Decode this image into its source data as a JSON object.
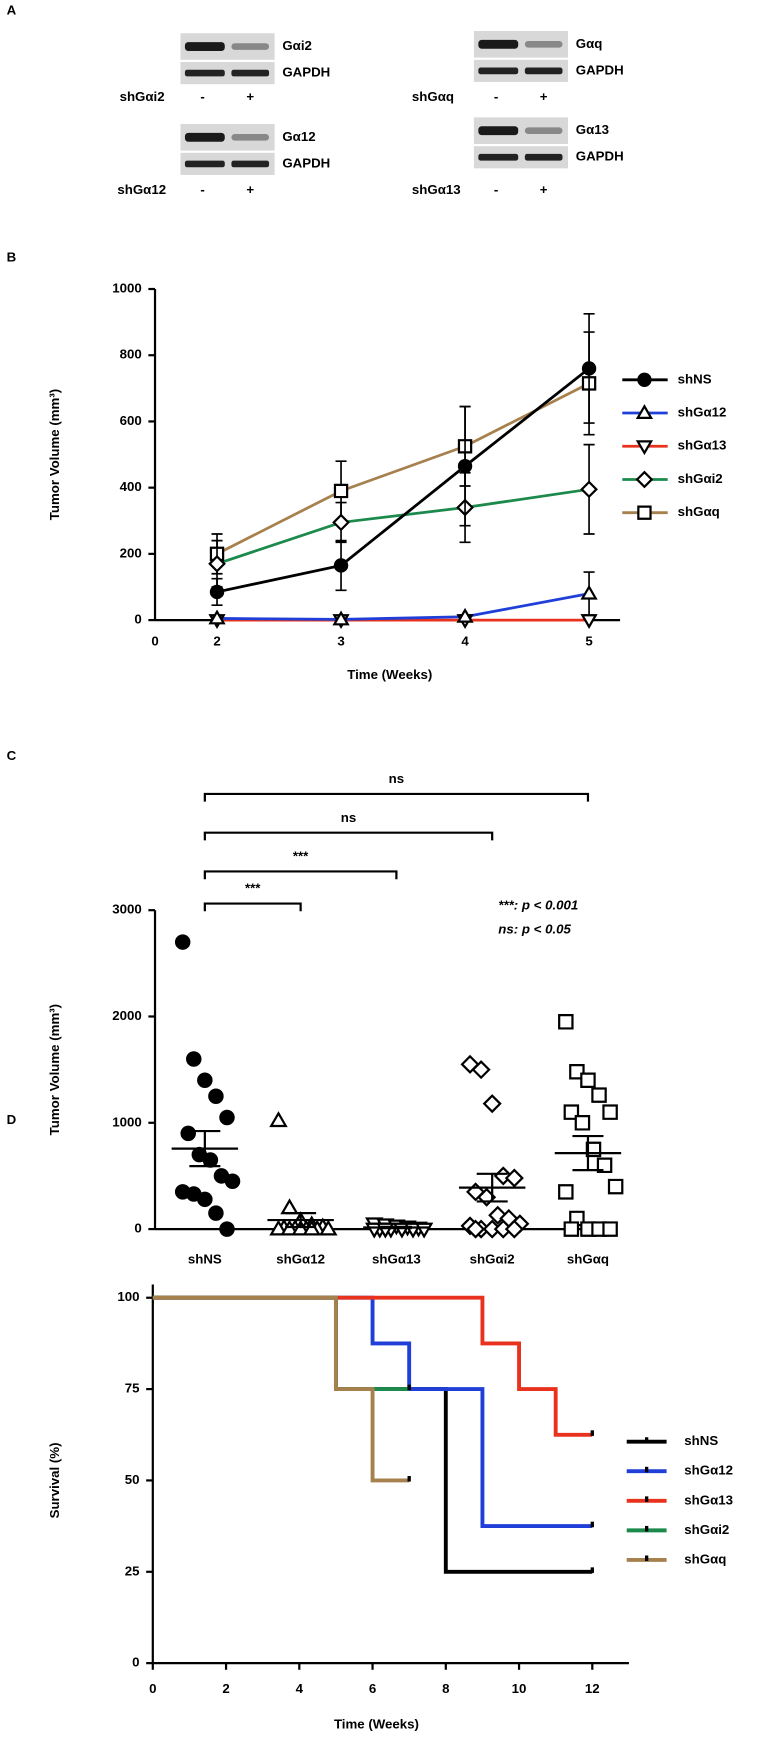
{
  "blots": {
    "panel_label": "A",
    "panels": [
      {
        "target": "Gαi2",
        "control": "GAPDH",
        "shrna": "shGαi2",
        "lanes": [
          "-",
          "+"
        ]
      },
      {
        "target": "Gαq",
        "control": "GAPDH",
        "shrna": "shGαq",
        "lanes": [
          "-",
          "+"
        ]
      },
      {
        "target": "Gα12",
        "control": "GAPDH",
        "shrna": "shGα12",
        "lanes": [
          "-",
          "+"
        ]
      },
      {
        "target": "Gα13",
        "control": "GAPDH",
        "shrna": "shGα13",
        "lanes": [
          "-",
          "+"
        ]
      }
    ]
  },
  "chart_data": [
    {
      "type": "line",
      "panel_label": "B",
      "y_label": "Tumor Volume (mm³)",
      "x_label": "Time (Weeks)",
      "x": [
        2,
        3,
        4,
        5
      ],
      "xlim": [
        1.5,
        5.25
      ],
      "xticks": [
        2,
        3,
        4,
        5
      ],
      "origin_label": "0",
      "ylim": [
        0,
        1000
      ],
      "yticks": [
        0,
        200,
        400,
        600,
        800,
        1000
      ],
      "legend": "right",
      "series": [
        {
          "name": "shNS",
          "color": "#000000",
          "marker": "circle",
          "filled": true,
          "values": [
            85,
            165,
            465,
            760
          ],
          "errors": [
            40,
            75,
            180,
            165
          ]
        },
        {
          "name": "shGα12",
          "color": "#1f3fd8",
          "marker": "triangle-up",
          "filled": false,
          "values": [
            5,
            2,
            10,
            80
          ],
          "errors": [
            3,
            2,
            5,
            65
          ]
        },
        {
          "name": "shGα13",
          "color": "#e8321e",
          "marker": "triangle-down",
          "filled": false,
          "values": [
            0,
            0,
            0,
            0
          ],
          "errors": [
            0,
            0,
            0,
            0
          ]
        },
        {
          "name": "shGαi2",
          "color": "#1b8a4c",
          "marker": "diamond",
          "filled": false,
          "values": [
            170,
            295,
            340,
            395
          ],
          "errors": [
            70,
            60,
            105,
            135
          ]
        },
        {
          "name": "shGαq",
          "color": "#a6814e",
          "marker": "square",
          "filled": false,
          "values": [
            200,
            390,
            525,
            715
          ],
          "errors": [
            60,
            90,
            120,
            155
          ]
        }
      ]
    },
    {
      "type": "dot",
      "panel_label": "C",
      "y_label": "Tumor Volume (mm³)",
      "categories": [
        "shNS",
        "shGα12",
        "shGα13",
        "shGαi2",
        "shGαq"
      ],
      "ylim": [
        0,
        3000
      ],
      "yticks": [
        0,
        1000,
        2000,
        3000
      ],
      "groups": [
        {
          "marker": "circle",
          "filled": true,
          "values": [
            2700,
            1600,
            1400,
            1250,
            1050,
            900,
            700,
            650,
            500,
            450,
            350,
            330,
            280,
            150,
            0
          ],
          "mean": 757,
          "sem": 165
        },
        {
          "marker": "triangle-up",
          "filled": false,
          "values": [
            1020,
            200,
            80,
            40,
            20,
            10,
            5,
            0,
            0,
            0,
            0,
            0,
            0,
            0
          ],
          "mean": 85,
          "sem": 65
        },
        {
          "marker": "triangle-down",
          "filled": false,
          "values": [
            50,
            40,
            30,
            20,
            10,
            0,
            0,
            0,
            0,
            0,
            0,
            0
          ],
          "mean": 15,
          "sem": 6
        },
        {
          "marker": "diamond",
          "filled": false,
          "values": [
            1550,
            1500,
            1180,
            500,
            480,
            350,
            300,
            130,
            100,
            50,
            30,
            0,
            0,
            0,
            0,
            0
          ],
          "mean": 390,
          "sem": 130
        },
        {
          "marker": "square",
          "filled": false,
          "values": [
            1950,
            1480,
            1400,
            1260,
            1100,
            1100,
            1000,
            750,
            600,
            400,
            350,
            100,
            0,
            0,
            0,
            0
          ],
          "mean": 715,
          "sem": 160
        }
      ],
      "comparisons": [
        {
          "label": "ns",
          "groups": [
            0,
            4
          ]
        },
        {
          "label": "ns",
          "groups": [
            0,
            3
          ]
        },
        {
          "label": "***",
          "groups": [
            0,
            2
          ]
        },
        {
          "label": "***",
          "groups": [
            0,
            1
          ]
        }
      ],
      "notes": [
        "***: p < 0.001",
        "ns: p < 0.05"
      ]
    },
    {
      "type": "survival",
      "panel_label": "D",
      "y_label": "Survival (%)",
      "x_label": "Time (Weeks)",
      "xlim": [
        0,
        13
      ],
      "xticks": [
        0,
        2,
        4,
        6,
        8,
        10,
        12
      ],
      "ylim": [
        0,
        100
      ],
      "yticks": [
        0,
        25,
        50,
        75,
        100
      ],
      "legend": "right",
      "series": [
        {
          "name": "shNS",
          "color": "#000000",
          "x": [
            0,
            5,
            8,
            12
          ],
          "values": [
            100,
            75,
            25,
            25
          ]
        },
        {
          "name": "shGα12",
          "color": "#1f3fd8",
          "x": [
            0,
            6,
            7,
            9,
            12
          ],
          "values": [
            100,
            87.5,
            75,
            37.5,
            37.5
          ]
        },
        {
          "name": "shGα13",
          "color": "#e8321e",
          "x": [
            0,
            9,
            10,
            11,
            12
          ],
          "values": [
            100,
            87.5,
            75,
            62.5,
            62.5
          ]
        },
        {
          "name": "shGαi2",
          "color": "#1b8a4c",
          "x": [
            0,
            5,
            7
          ],
          "values": [
            100,
            75,
            75
          ]
        },
        {
          "name": "shGαq",
          "color": "#a6814e",
          "x": [
            0,
            5,
            6,
            7
          ],
          "values": [
            100,
            75,
            50,
            50
          ]
        }
      ]
    }
  ]
}
